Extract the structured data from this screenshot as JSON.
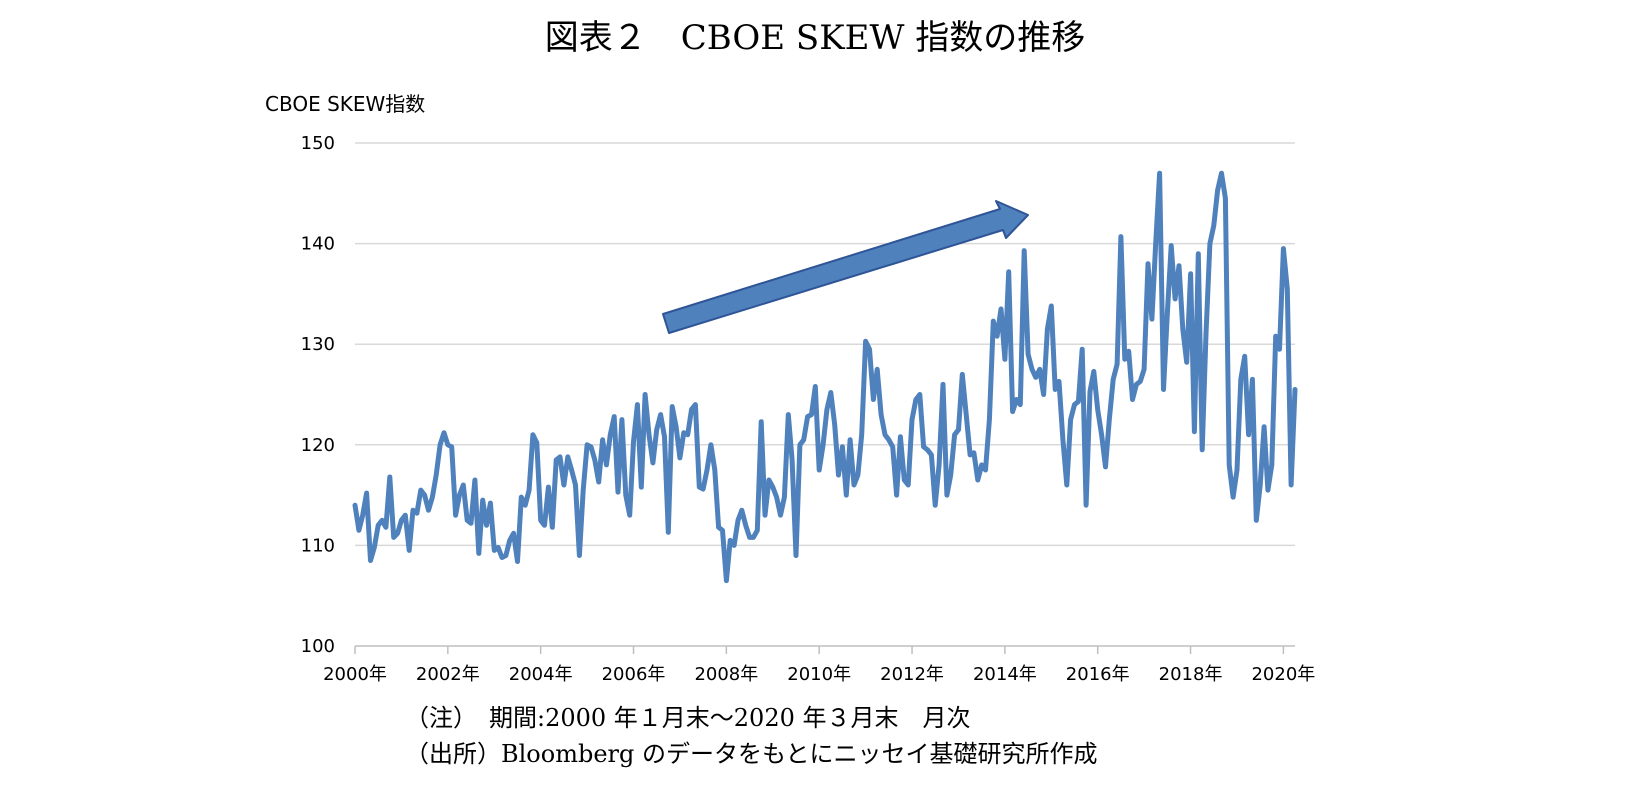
{
  "title": "図表２　CBOE SKEW 指数の推移",
  "chart_data": {
    "type": "line",
    "ylabel": "CBOE SKEW指数",
    "ylim": [
      100,
      150
    ],
    "yticks": [
      "150",
      "140",
      "130",
      "120",
      "110",
      "100"
    ],
    "xlim": [
      "2000-01",
      "2020-03"
    ],
    "xticks": [
      "2000年",
      "2002年",
      "2004年",
      "2006年",
      "2008年",
      "2010年",
      "2012年",
      "2014年",
      "2016年",
      "2018年",
      "2020年"
    ],
    "grid": true,
    "annotation": "upward-trend-arrow",
    "colors": {
      "line": "#4f81bd",
      "arrow": "#4f81bd",
      "grid": "#d9d9d9"
    },
    "series": [
      {
        "start": "2000-01",
        "frequency": "monthly",
        "values": [
          114.0,
          111.5,
          113.0,
          115.2,
          108.5,
          109.8,
          112.0,
          112.5,
          111.8,
          116.8,
          110.8,
          111.2,
          112.5,
          113.0,
          109.5,
          113.5,
          113.2,
          115.5,
          115.0,
          113.5,
          114.8,
          117.0,
          120.0,
          121.2,
          120.0,
          119.8,
          113.0,
          115.0,
          116.0,
          112.5,
          112.2,
          116.5,
          109.2,
          114.5,
          112.0,
          114.2,
          109.5,
          109.8,
          108.8,
          109.0,
          110.5,
          111.2,
          108.4,
          114.8,
          114.0,
          115.5,
          121.0,
          120.2,
          112.5,
          112.0,
          115.8,
          111.8,
          118.5,
          118.8,
          116.0,
          118.8,
          117.5,
          116.0,
          109.0,
          115.5,
          120.0,
          119.8,
          118.5,
          116.3,
          120.5,
          118.0,
          121.0,
          122.8,
          115.3,
          122.5,
          115.0,
          113.0,
          120.3,
          124.0,
          115.8,
          125.0,
          121.0,
          118.2,
          121.5,
          123.0,
          120.8,
          111.3,
          123.8,
          121.8,
          118.7,
          121.2,
          121.0,
          123.5,
          124.0,
          115.8,
          115.6,
          117.5,
          120.0,
          117.5,
          111.8,
          111.5,
          106.5,
          110.5,
          110.0,
          112.5,
          113.5,
          112.0,
          110.8,
          110.8,
          111.5,
          122.3,
          113.0,
          116.5,
          115.8,
          114.8,
          113.0,
          114.8,
          123.0,
          118.5,
          109.0,
          120.0,
          120.5,
          122.8,
          123.0,
          125.8,
          117.5,
          120.0,
          123.5,
          125.2,
          122.0,
          117.0,
          119.8,
          115.0,
          120.5,
          116.0,
          117.0,
          121.0,
          130.3,
          129.5,
          124.5,
          127.5,
          123.0,
          121.0,
          120.5,
          119.8,
          115.0,
          120.8,
          116.5,
          116.0,
          122.5,
          124.5,
          125.0,
          119.8,
          119.5,
          119.0,
          114.0,
          118.0,
          126.0,
          115.0,
          117.0,
          121.0,
          121.5,
          127.0,
          123.0,
          119.0,
          119.2,
          116.5,
          118.0,
          117.5,
          122.5,
          132.3,
          130.8,
          133.5,
          128.5,
          137.2,
          123.3,
          124.5,
          124.0,
          139.3,
          129.0,
          127.5,
          126.7,
          127.5,
          125.0,
          131.5,
          133.8,
          125.5,
          126.3,
          120.5,
          116.0,
          122.5,
          124.0,
          124.3,
          129.5,
          114.0,
          125.3,
          127.3,
          123.5,
          121.0,
          117.8,
          122.5,
          126.5,
          128.0,
          140.7,
          128.5,
          129.3,
          124.5,
          126.0,
          126.3,
          127.5,
          138.0,
          132.5,
          140.0,
          147.0,
          125.5,
          133.0,
          139.8,
          134.5,
          137.8,
          131.5,
          128.2,
          137.0,
          121.3,
          139.0,
          119.5,
          131.0,
          140.0,
          141.8,
          145.3,
          147.0,
          144.5,
          118.0,
          114.8,
          117.5,
          126.5,
          128.8,
          121.0,
          126.5,
          112.5,
          116.0,
          121.8,
          115.5,
          118.0,
          130.8,
          129.5,
          139.5,
          135.5,
          116.0,
          125.5
        ]
      }
    ]
  },
  "notes": [
    "（注）　期間:2000 年１月末～2020 年３月末　月次",
    "（出所）Bloomberg のデータをもとにニッセイ基礎研究所作成"
  ]
}
